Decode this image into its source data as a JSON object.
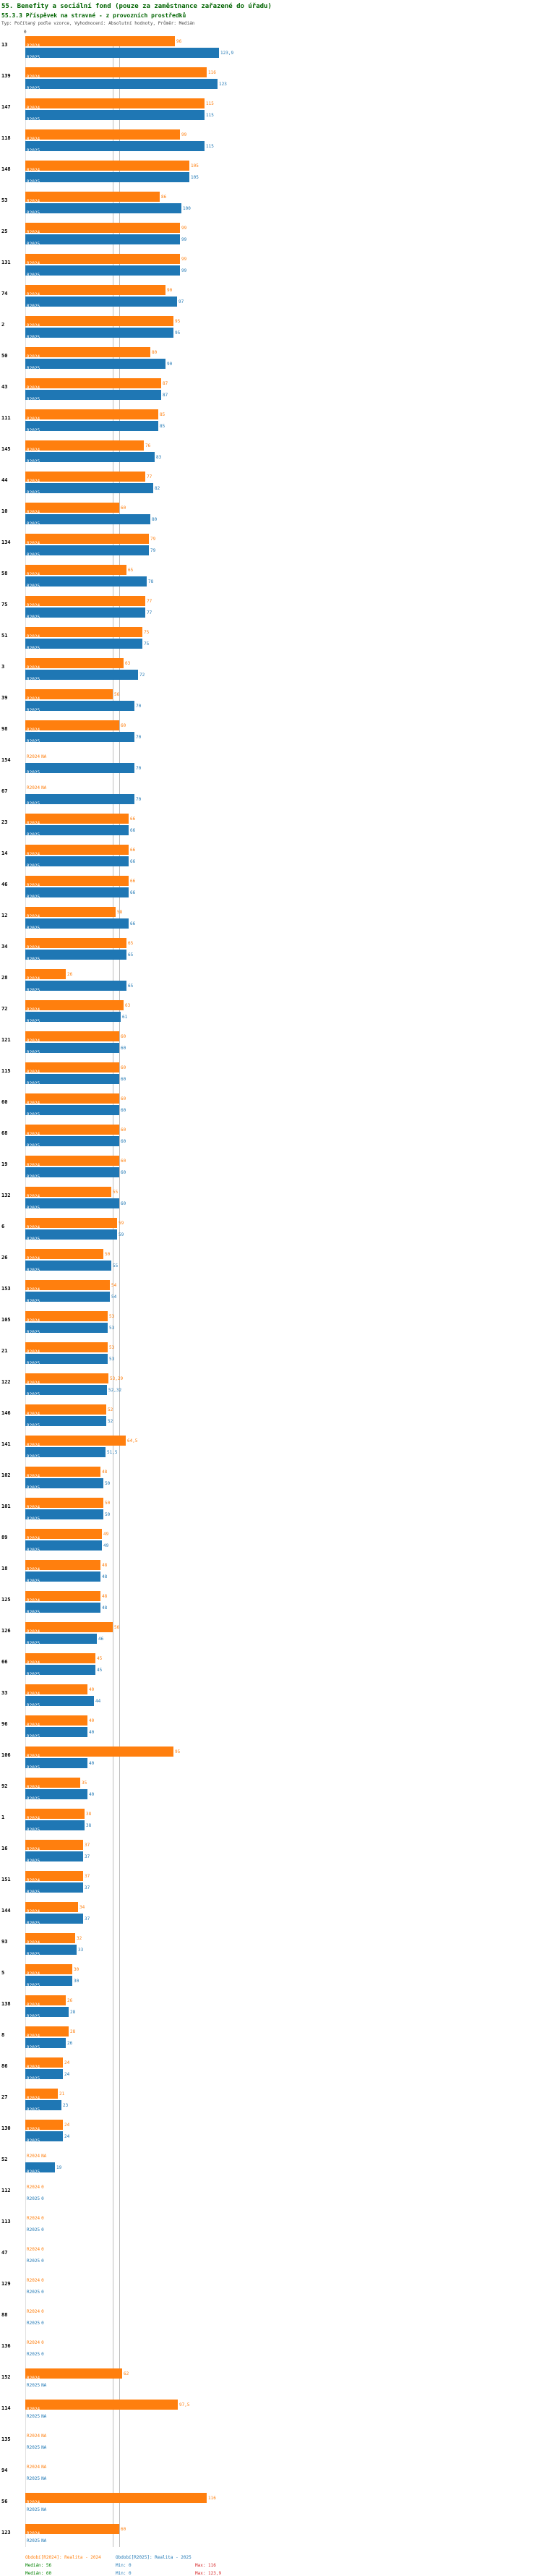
{
  "header": {
    "title_line1": "55. Benefity a sociální fond (pouze za zaměstnance zařazené do úřadu)",
    "title_line2": "55.3.3 Příspěvek na stravné - z provozních prostředků",
    "meta_line": "Typ: Počítaný podle vzorce, Vyhodnocení: Absolutní hodnoty, Průměr: Medián"
  },
  "footer": {
    "legend_2024": "Období[R2024]: Realita - 2024",
    "legend_2025": "Období[R2025]: Realita - 2025",
    "s2024": {
      "median": "Medián: 56",
      "min": "Min: 0",
      "max": "Max: 116"
    },
    "s2025": {
      "median": "Medián: 60",
      "min": "Min: 0",
      "max": "Max: 123,9"
    }
  },
  "chart_data": {
    "type": "bar",
    "orientation": "horizontal",
    "title": "55. Benefity a sociální fond (pouze za zaměstnance zařazené do úřadu)",
    "subtitle": "55.3.3 Příspěvek na stravné - z provozních prostředků",
    "value_axis": {
      "min": 0,
      "max": 123.9,
      "zero_label": "0"
    },
    "median_lines": [
      56,
      60
    ],
    "series_names": [
      "R2024",
      "R2025"
    ],
    "series_colors": [
      "#ff7f0e",
      "#1f77b4"
    ],
    "legend_position": "bottom",
    "rows": [
      {
        "id": "13",
        "r2024": 96,
        "r2024_label": "96",
        "r2025": 123.9,
        "r2025_label": "123,9"
      },
      {
        "id": "139",
        "r2024": 116,
        "r2024_label": "116",
        "r2025": 123,
        "r2025_label": "123"
      },
      {
        "id": "147",
        "r2024": 115,
        "r2024_label": "115",
        "r2025": 115,
        "r2025_label": "115"
      },
      {
        "id": "118",
        "r2024": 99,
        "r2024_label": "99",
        "r2025": 115,
        "r2025_label": "115"
      },
      {
        "id": "148",
        "r2024": 105,
        "r2024_label": "105",
        "r2025": 105,
        "r2025_label": "105"
      },
      {
        "id": "53",
        "r2024": 86,
        "r2024_label": "86",
        "r2025": 100,
        "r2025_label": "100"
      },
      {
        "id": "25",
        "r2024": 99,
        "r2024_label": "99",
        "r2025": 99,
        "r2025_label": "99"
      },
      {
        "id": "131",
        "r2024": 99,
        "r2024_label": "99",
        "r2025": 99,
        "r2025_label": "99"
      },
      {
        "id": "74",
        "r2024": 90,
        "r2024_label": "90",
        "r2025": 97,
        "r2025_label": "97"
      },
      {
        "id": "2",
        "r2024": 95,
        "r2024_label": "95",
        "r2025": 95,
        "r2025_label": "95"
      },
      {
        "id": "50",
        "r2024": 80,
        "r2024_label": "80",
        "r2025": 90,
        "r2025_label": "90"
      },
      {
        "id": "43",
        "r2024": 87,
        "r2024_label": "87",
        "r2025": 87,
        "r2025_label": "87"
      },
      {
        "id": "111",
        "r2024": 85,
        "r2024_label": "85",
        "r2025": 85,
        "r2025_label": "85"
      },
      {
        "id": "145",
        "r2024": 76,
        "r2024_label": "76",
        "r2025": 83,
        "r2025_label": "83"
      },
      {
        "id": "44",
        "r2024": 77,
        "r2024_label": "77",
        "r2025": 82,
        "r2025_label": "82"
      },
      {
        "id": "10",
        "r2024": 60,
        "r2024_label": "60",
        "r2025": 80,
        "r2025_label": "80"
      },
      {
        "id": "134",
        "r2024": 79,
        "r2024_label": "79",
        "r2025": 79,
        "r2025_label": "79"
      },
      {
        "id": "58",
        "r2024": 65,
        "r2024_label": "65",
        "r2025": 78,
        "r2025_label": "78"
      },
      {
        "id": "75",
        "r2024": 77,
        "r2024_label": "77",
        "r2025": 77,
        "r2025_label": "77"
      },
      {
        "id": "51",
        "r2024": 75,
        "r2024_label": "75",
        "r2025": 75,
        "r2025_label": "75"
      },
      {
        "id": "3",
        "r2024": 63,
        "r2024_label": "63",
        "r2025": 72,
        "r2025_label": "72"
      },
      {
        "id": "39",
        "r2024": 56,
        "r2024_label": "56",
        "r2025": 70,
        "r2025_label": "70"
      },
      {
        "id": "98",
        "r2024": 60,
        "r2024_label": "60",
        "r2025": 70,
        "r2025_label": "70"
      },
      {
        "id": "154",
        "r2024": null,
        "r2024_label": "NA",
        "r2025": 70,
        "r2025_label": "70"
      },
      {
        "id": "67",
        "r2024": null,
        "r2024_label": "NA",
        "r2025": 70,
        "r2025_label": "70"
      },
      {
        "id": "23",
        "r2024": 66,
        "r2024_label": "66",
        "r2025": 66,
        "r2025_label": "66"
      },
      {
        "id": "14",
        "r2024": 66,
        "r2024_label": "66",
        "r2025": 66,
        "r2025_label": "66"
      },
      {
        "id": "46",
        "r2024": 66,
        "r2024_label": "66",
        "r2025": 66,
        "r2025_label": "66"
      },
      {
        "id": "12",
        "r2024": 58,
        "r2024_label": "58",
        "r2025": 66,
        "r2025_label": "66"
      },
      {
        "id": "34",
        "r2024": 65,
        "r2024_label": "65",
        "r2025": 65,
        "r2025_label": "65"
      },
      {
        "id": "28",
        "r2024": 26,
        "r2024_label": "26",
        "r2025": 65,
        "r2025_label": "65"
      },
      {
        "id": "72",
        "r2024": 63,
        "r2024_label": "63",
        "r2025": 61,
        "r2025_label": "61"
      },
      {
        "id": "121",
        "r2024": 60,
        "r2024_label": "60",
        "r2025": 60,
        "r2025_label": "60"
      },
      {
        "id": "115",
        "r2024": 60,
        "r2024_label": "60",
        "r2025": 60,
        "r2025_label": "60"
      },
      {
        "id": "60",
        "r2024": 60,
        "r2024_label": "60",
        "r2025": 60,
        "r2025_label": "60"
      },
      {
        "id": "68",
        "r2024": 60,
        "r2024_label": "60",
        "r2025": 60,
        "r2025_label": "60"
      },
      {
        "id": "19",
        "r2024": 60,
        "r2024_label": "60",
        "r2025": 60,
        "r2025_label": "60"
      },
      {
        "id": "132",
        "r2024": 55,
        "r2024_label": "55",
        "r2025": 60,
        "r2025_label": "60"
      },
      {
        "id": "6",
        "r2024": 59,
        "r2024_label": "59",
        "r2025": 59,
        "r2025_label": "59"
      },
      {
        "id": "26",
        "r2024": 50,
        "r2024_label": "50",
        "r2025": 55,
        "r2025_label": "55"
      },
      {
        "id": "153",
        "r2024": 54,
        "r2024_label": "54",
        "r2025": 54,
        "r2025_label": "54"
      },
      {
        "id": "105",
        "r2024": 53,
        "r2024_label": "53",
        "r2025": 53,
        "r2025_label": "53"
      },
      {
        "id": "21",
        "r2024": 53,
        "r2024_label": "53",
        "r2025": 53,
        "r2025_label": "53"
      },
      {
        "id": "122",
        "r2024": 53.29,
        "r2024_label": "53,29",
        "r2025": 52.32,
        "r2025_label": "52,32"
      },
      {
        "id": "146",
        "r2024": 52,
        "r2024_label": "52",
        "r2025": 52,
        "r2025_label": "52"
      },
      {
        "id": "141",
        "r2024": 64.5,
        "r2024_label": "64,5",
        "r2025": 51.5,
        "r2025_label": "51,5"
      },
      {
        "id": "102",
        "r2024": 48,
        "r2024_label": "48",
        "r2025": 50,
        "r2025_label": "50"
      },
      {
        "id": "101",
        "r2024": 50,
        "r2024_label": "50",
        "r2025": 50,
        "r2025_label": "50"
      },
      {
        "id": "89",
        "r2024": 49,
        "r2024_label": "49",
        "r2025": 49,
        "r2025_label": "49"
      },
      {
        "id": "18",
        "r2024": 48,
        "r2024_label": "48",
        "r2025": 48,
        "r2025_label": "48"
      },
      {
        "id": "125",
        "r2024": 48,
        "r2024_label": "48",
        "r2025": 48,
        "r2025_label": "48"
      },
      {
        "id": "126",
        "r2024": 56,
        "r2024_label": "56",
        "r2025": 46,
        "r2025_label": "46"
      },
      {
        "id": "66",
        "r2024": 45,
        "r2024_label": "45",
        "r2025": 45,
        "r2025_label": "45"
      },
      {
        "id": "33",
        "r2024": 40,
        "r2024_label": "40",
        "r2025": 44,
        "r2025_label": "44"
      },
      {
        "id": "96",
        "r2024": 40,
        "r2024_label": "40",
        "r2025": 40,
        "r2025_label": "40"
      },
      {
        "id": "106",
        "r2024": 95,
        "r2024_label": "95",
        "r2025": 40,
        "r2025_label": "40"
      },
      {
        "id": "92",
        "r2024": 35,
        "r2024_label": "35",
        "r2025": 40,
        "r2025_label": "40"
      },
      {
        "id": "1",
        "r2024": 38,
        "r2024_label": "38",
        "r2025": 38,
        "r2025_label": "38"
      },
      {
        "id": "16",
        "r2024": 37,
        "r2024_label": "37",
        "r2025": 37,
        "r2025_label": "37"
      },
      {
        "id": "151",
        "r2024": 37,
        "r2024_label": "37",
        "r2025": 37,
        "r2025_label": "37"
      },
      {
        "id": "144",
        "r2024": 34,
        "r2024_label": "34",
        "r2025": 37,
        "r2025_label": "37"
      },
      {
        "id": "93",
        "r2024": 32,
        "r2024_label": "32",
        "r2025": 33,
        "r2025_label": "33"
      },
      {
        "id": "5",
        "r2024": 30,
        "r2024_label": "30",
        "r2025": 30,
        "r2025_label": "30"
      },
      {
        "id": "138",
        "r2024": 26,
        "r2024_label": "26",
        "r2025": 28,
        "r2025_label": "28"
      },
      {
        "id": "8",
        "r2024": 28,
        "r2024_label": "28",
        "r2025": 26,
        "r2025_label": "26"
      },
      {
        "id": "86",
        "r2024": 24,
        "r2024_label": "24",
        "r2025": 24,
        "r2025_label": "24"
      },
      {
        "id": "27",
        "r2024": 21,
        "r2024_label": "21",
        "r2025": 23,
        "r2025_label": "23"
      },
      {
        "id": "130",
        "r2024": 24,
        "r2024_label": "24",
        "r2025": 24,
        "r2025_label": "24"
      },
      {
        "id": "52",
        "r2024": null,
        "r2024_label": "NA",
        "r2025": 19,
        "r2025_label": "19"
      },
      {
        "id": "112",
        "r2024": 0,
        "r2024_label": "0",
        "r2025": 0,
        "r2025_label": "0"
      },
      {
        "id": "113",
        "r2024": 0,
        "r2024_label": "0",
        "r2025": 0,
        "r2025_label": "0"
      },
      {
        "id": "47",
        "r2024": 0,
        "r2024_label": "0",
        "r2025": 0,
        "r2025_label": "0"
      },
      {
        "id": "129",
        "r2024": 0,
        "r2024_label": "0",
        "r2025": 0,
        "r2025_label": "0"
      },
      {
        "id": "88",
        "r2024": 0,
        "r2024_label": "0",
        "r2025": 0,
        "r2025_label": "0"
      },
      {
        "id": "136",
        "r2024": 0,
        "r2024_label": "0",
        "r2025": 0,
        "r2025_label": "0"
      },
      {
        "id": "152",
        "r2024": 62,
        "r2024_label": "62",
        "r2025": null,
        "r2025_label": "NA"
      },
      {
        "id": "114",
        "r2024": 97.5,
        "r2024_label": "97,5",
        "r2025": null,
        "r2025_label": "NA"
      },
      {
        "id": "135",
        "r2024": null,
        "r2024_label": "NA",
        "r2025": null,
        "r2025_label": "NA"
      },
      {
        "id": "94",
        "r2024": null,
        "r2024_label": "NA",
        "r2025": null,
        "r2025_label": "NA"
      },
      {
        "id": "56",
        "r2024": 116,
        "r2024_label": "116",
        "r2025": null,
        "r2025_label": "NA"
      },
      {
        "id": "123",
        "r2024": 60,
        "r2024_label": "60",
        "r2025": null,
        "r2025_label": "NA"
      }
    ]
  }
}
